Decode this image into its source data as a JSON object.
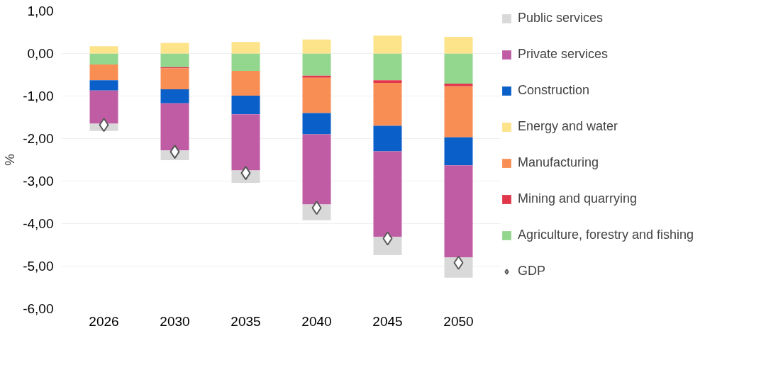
{
  "chart_data": {
    "type": "bar",
    "stacked": true,
    "ylabel": "%",
    "categories": [
      "2026",
      "2030",
      "2035",
      "2040",
      "2045",
      "2050"
    ],
    "series": [
      {
        "name": "Agriculture, forestry and fishing",
        "color": "#93d68d",
        "values": [
          -0.26,
          -0.32,
          -0.41,
          -0.52,
          -0.63,
          -0.71
        ]
      },
      {
        "name": "Mining and quarrying",
        "color": "#e0384a",
        "values": [
          0,
          -0.03,
          0,
          -0.05,
          -0.06,
          -0.06
        ]
      },
      {
        "name": "Manufacturing",
        "color": "#f98e55",
        "values": [
          -0.37,
          -0.49,
          -0.58,
          -0.83,
          -1.01,
          -1.2
        ]
      },
      {
        "name": "Energy and water",
        "color": "#fde38a",
        "values": [
          0.17,
          0.25,
          0.27,
          0.33,
          0.42,
          0.39
        ]
      },
      {
        "name": "Construction",
        "color": "#0a5fc8",
        "values": [
          -0.24,
          -0.33,
          -0.44,
          -0.5,
          -0.6,
          -0.66
        ]
      },
      {
        "name": "Private services",
        "color": "#c05ca4",
        "values": [
          -0.78,
          -1.11,
          -1.32,
          -1.65,
          -2.01,
          -2.16
        ]
      },
      {
        "name": "Public services",
        "color": "#d9d9d9",
        "values": [
          -0.17,
          -0.23,
          -0.29,
          -0.37,
          -0.43,
          -0.48
        ]
      },
      {
        "name": "GDP",
        "type": "scatter",
        "marker": "diamond",
        "color": "#ffffff",
        "values": [
          -1.68,
          -2.31,
          -2.81,
          -3.63,
          -4.35,
          -4.92
        ]
      }
    ],
    "ylim": [
      -6,
      1
    ],
    "yticks": [
      {
        "value": 1,
        "label": "1,00"
      },
      {
        "value": 0,
        "label": "0,00"
      },
      {
        "value": -1,
        "label": "-1,00"
      },
      {
        "value": -2,
        "label": "-2,00"
      },
      {
        "value": -3,
        "label": "-3,00"
      },
      {
        "value": -4,
        "label": "-4,00"
      },
      {
        "value": -5,
        "label": "-5,00"
      },
      {
        "value": -6,
        "label": "-6,00"
      }
    ],
    "grid": "y",
    "legend": "right"
  }
}
